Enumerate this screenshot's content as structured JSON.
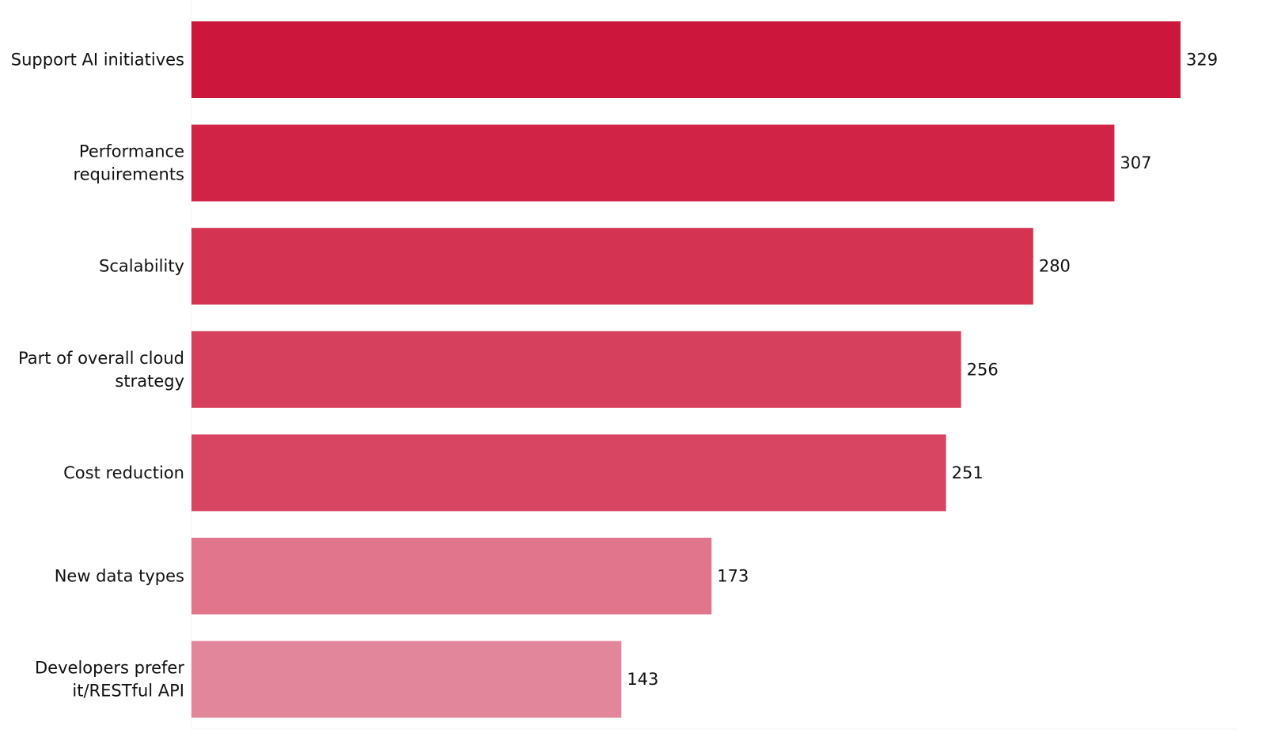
{
  "chart_data": {
    "type": "bar",
    "orientation": "horizontal",
    "categories": [
      [
        "Support AI initiatives"
      ],
      [
        "Performance",
        "requirements"
      ],
      [
        "Scalability"
      ],
      [
        "Part of overall cloud",
        "strategy"
      ],
      [
        "Cost reduction"
      ],
      [
        "New data types"
      ],
      [
        "Developers prefer",
        "it/RESTful API"
      ]
    ],
    "values": [
      329,
      307,
      280,
      256,
      251,
      173,
      143
    ],
    "colors": [
      "#cc163b",
      "#d02346",
      "#d43352",
      "#d7405d",
      "#d84563",
      "#e0758b",
      "#e2879b"
    ],
    "xlim": [
      0,
      329
    ],
    "grid": false,
    "legend": "none"
  }
}
